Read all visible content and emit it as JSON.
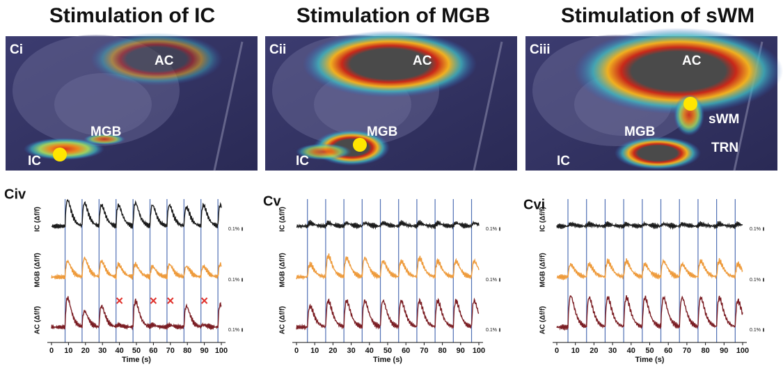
{
  "columns": [
    {
      "title": "Stimulation of IC",
      "image": {
        "label": "Ci",
        "regions": [
          "AC",
          "MGB",
          "IC"
        ]
      },
      "traces": {
        "label": "Civ",
        "xlabel": "Time (s)",
        "xlim": [
          0,
          100
        ],
        "xticks": [
          0,
          10,
          20,
          30,
          40,
          50,
          60,
          70,
          80,
          90,
          100
        ],
        "stim_times": [
          8,
          18,
          28,
          38,
          48,
          58,
          68,
          78,
          88,
          98
        ],
        "missed": [
          40,
          60,
          70,
          90
        ],
        "scale_bar": {
          "value": 0.1,
          "label": "0.1%"
        },
        "series": [
          {
            "name": "IC (Δf/f)",
            "color": "#1a1a1a",
            "amplitudes": [
              0.25,
              0.22,
              0.2,
              0.2,
              0.22,
              0.2,
              0.2,
              0.18,
              0.2,
              0.2
            ]
          },
          {
            "name": "MGB (Δf/f)",
            "color": "#ee9a3a",
            "amplitudes": [
              0.15,
              0.18,
              0.15,
              0.12,
              0.12,
              0.1,
              0.12,
              0.1,
              0.1,
              0.12
            ]
          },
          {
            "name": "AC (Δf/f)",
            "color": "#7a1c22",
            "amplitudes": [
              0.28,
              0.15,
              0.2,
              0.02,
              0.25,
              0.02,
              0.02,
              0.2,
              0.02,
              0.22
            ]
          }
        ]
      }
    },
    {
      "title": "Stimulation of MGB",
      "image": {
        "label": "Cii",
        "regions": [
          "AC",
          "MGB",
          "IC"
        ]
      },
      "traces": {
        "label": "Cv",
        "xlabel": "Time (s)",
        "xlim": [
          0,
          100
        ],
        "xticks": [
          0,
          10,
          20,
          30,
          40,
          50,
          60,
          70,
          80,
          90,
          100
        ],
        "stim_times": [
          6,
          16,
          26,
          36,
          46,
          56,
          66,
          76,
          86,
          96
        ],
        "scale_bar": {
          "value": 0.1,
          "label": "0.1%"
        },
        "series": [
          {
            "name": "IC (Δf/f)",
            "color": "#1a1a1a",
            "amplitudes": [
              0.03,
              0.03,
              0.03,
              0.03,
              0.03,
              0.03,
              0.03,
              0.03,
              0.03,
              0.03
            ]
          },
          {
            "name": "MGB (Δf/f)",
            "color": "#ee9a3a",
            "amplitudes": [
              0.12,
              0.2,
              0.18,
              0.18,
              0.15,
              0.15,
              0.18,
              0.15,
              0.15,
              0.15
            ]
          },
          {
            "name": "AC (Δf/f)",
            "color": "#7a1c22",
            "amplitudes": [
              0.2,
              0.25,
              0.25,
              0.25,
              0.25,
              0.25,
              0.25,
              0.25,
              0.25,
              0.25
            ]
          }
        ]
      }
    },
    {
      "title": "Stimulation of sWM",
      "image": {
        "label": "Ciii",
        "regions": [
          "AC",
          "sWM",
          "MGB",
          "TRN",
          "IC"
        ]
      },
      "traces": {
        "label": "Cvi",
        "xlabel": "Time (s)",
        "xlim": [
          0,
          100
        ],
        "xticks": [
          0,
          10,
          20,
          30,
          40,
          50,
          60,
          70,
          80,
          90,
          100
        ],
        "stim_times": [
          6,
          16,
          26,
          36,
          46,
          56,
          66,
          76,
          86,
          96
        ],
        "scale_bar": {
          "value": 0.1,
          "label": "0.1%"
        },
        "series": [
          {
            "name": "IC (Δf/f)",
            "color": "#1a1a1a",
            "amplitudes": [
              0.02,
              0.02,
              0.02,
              0.02,
              0.02,
              0.02,
              0.02,
              0.02,
              0.02,
              0.02
            ]
          },
          {
            "name": "MGB (Δf/f)",
            "color": "#ee9a3a",
            "amplitudes": [
              0.12,
              0.12,
              0.15,
              0.15,
              0.12,
              0.15,
              0.12,
              0.15,
              0.15,
              0.12
            ]
          },
          {
            "name": "AC (Δf/f)",
            "color": "#7a1c22",
            "amplitudes": [
              0.3,
              0.28,
              0.28,
              0.28,
              0.28,
              0.28,
              0.28,
              0.28,
              0.28,
              0.25
            ]
          }
        ]
      }
    }
  ]
}
